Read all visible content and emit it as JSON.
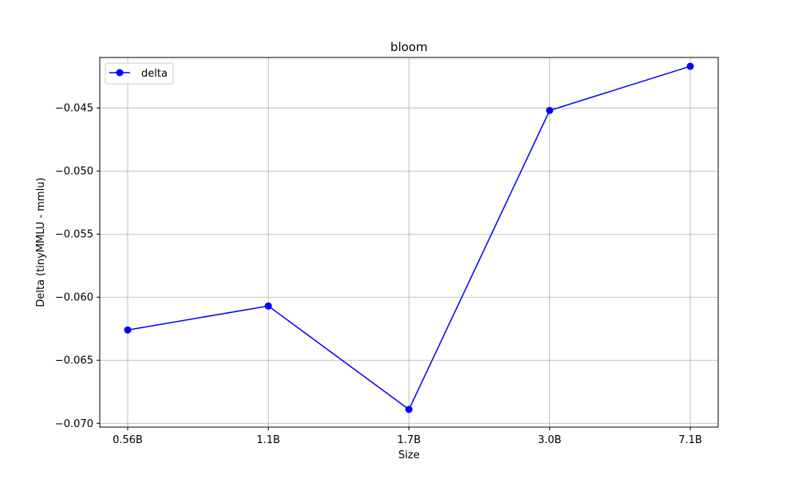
{
  "chart_data": {
    "type": "line",
    "title": "bloom",
    "xlabel": "Size",
    "ylabel": "Delta (tinyMMLU - mmlu)",
    "categories": [
      "0.56B",
      "1.1B",
      "1.7B",
      "3.0B",
      "7.1B"
    ],
    "series": [
      {
        "name": "delta",
        "values": [
          -0.0626,
          -0.0607,
          -0.0689,
          -0.0452,
          -0.0417
        ],
        "color": "#0000ff",
        "marker": "circle"
      }
    ],
    "ylim": [
      -0.0703,
      -0.041
    ],
    "yticks": [
      -0.045,
      -0.05,
      -0.055,
      -0.06,
      -0.065,
      -0.07
    ],
    "ytick_labels": [
      "−0.045",
      "−0.050",
      "−0.055",
      "−0.060",
      "−0.065",
      "−0.070"
    ],
    "grid": true,
    "legend_position": "top-left"
  }
}
